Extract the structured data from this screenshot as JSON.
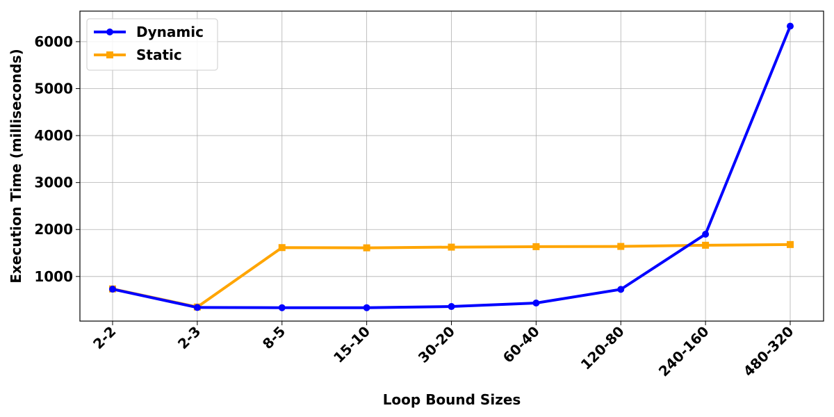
{
  "chart_data": {
    "type": "line",
    "title": "",
    "xlabel": "Loop Bound Sizes",
    "ylabel": "Execution Time (milliseconds)",
    "categories": [
      "2-2",
      "2-3",
      "8-5",
      "15-10",
      "30-20",
      "60-40",
      "120-80",
      "240-160",
      "480-320"
    ],
    "yticks": [
      1000,
      2000,
      3000,
      4000,
      5000,
      6000
    ],
    "ylim": [
      50,
      6650
    ],
    "grid": true,
    "legend_position": "top-left",
    "series": [
      {
        "name": "Dynamic",
        "color": "#0000ff",
        "marker": "circle",
        "values": [
          730,
          340,
          335,
          335,
          360,
          435,
          725,
          1900,
          6330
        ]
      },
      {
        "name": "Static",
        "color": "#ffa500",
        "marker": "square",
        "values": [
          735,
          350,
          1615,
          1610,
          1625,
          1635,
          1640,
          1665,
          1680
        ]
      }
    ]
  }
}
